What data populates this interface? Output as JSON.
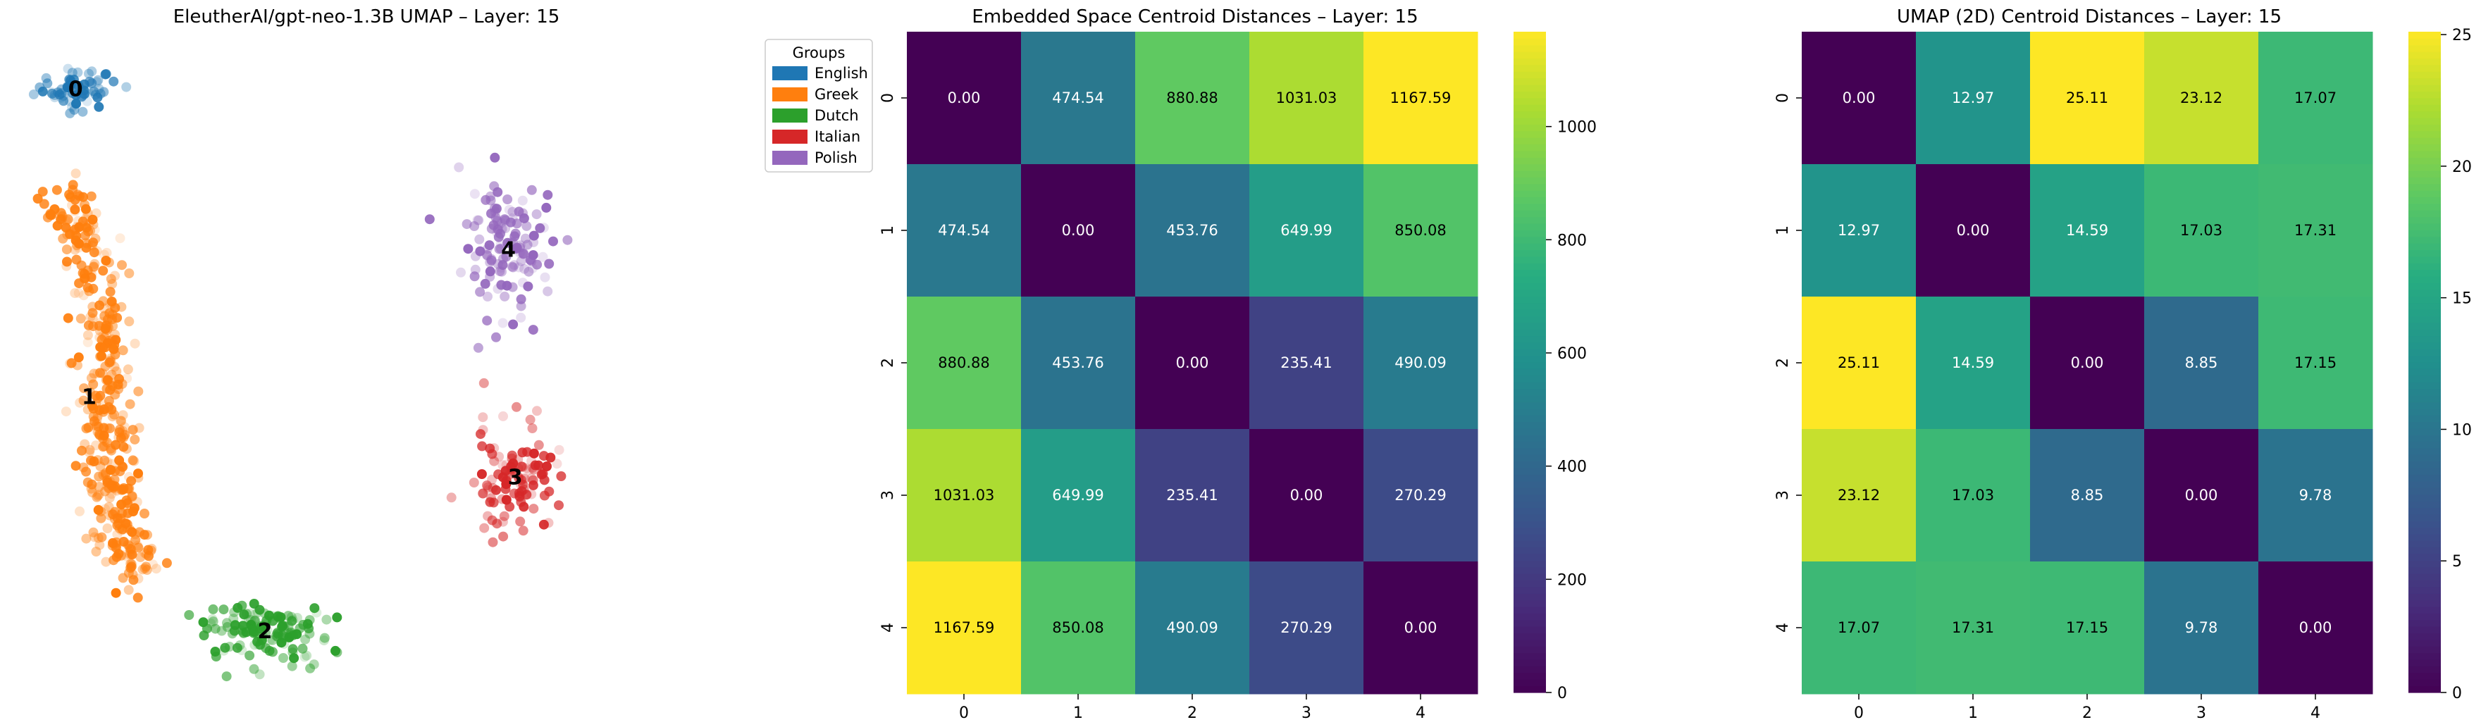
{
  "chart_data": [
    {
      "type": "scatter",
      "title": "EleutherAI/gpt-neo-1.3B UMAP – Layer: 15",
      "legend": {
        "title": "Groups",
        "placement": "top-right",
        "entries": [
          {
            "label": "English",
            "color": "#1f77b4"
          },
          {
            "label": "Greek",
            "color": "#ff7f0e"
          },
          {
            "label": "Dutch",
            "color": "#2ca02c"
          },
          {
            "label": "Italian",
            "color": "#d62728"
          },
          {
            "label": "Polish",
            "color": "#9467bd"
          }
        ]
      },
      "clusters": [
        {
          "label": "0",
          "group": "English",
          "color": "#1f77b4",
          "centroid": [
            0.07,
            0.93
          ],
          "spread": [
            0.03,
            0.015
          ],
          "count": 60
        },
        {
          "label": "1",
          "group": "Greek",
          "color": "#ff7f0e",
          "centroid": [
            0.09,
            0.47
          ],
          "spread": [
            0.05,
            0.2
          ],
          "count": 420
        },
        {
          "label": "2",
          "group": "Dutch",
          "color": "#2ca02c",
          "centroid": [
            0.35,
            0.12
          ],
          "spread": [
            0.05,
            0.02
          ],
          "count": 140
        },
        {
          "label": "3",
          "group": "Italian",
          "color": "#d62728",
          "centroid": [
            0.72,
            0.35
          ],
          "spread": [
            0.03,
            0.04
          ],
          "count": 110
        },
        {
          "label": "4",
          "group": "Polish",
          "color": "#9467bd",
          "centroid": [
            0.71,
            0.69
          ],
          "spread": [
            0.035,
            0.05
          ],
          "count": 130
        }
      ],
      "axes_visible": false
    },
    {
      "type": "heatmap",
      "title": "Embedded Space Centroid Distances – Layer: 15",
      "xticks": [
        "0",
        "1",
        "2",
        "3",
        "4"
      ],
      "yticks": [
        "0",
        "1",
        "2",
        "3",
        "4"
      ],
      "values": [
        [
          0.0,
          474.54,
          880.88,
          1031.03,
          1167.59
        ],
        [
          474.54,
          0.0,
          453.76,
          649.99,
          850.08
        ],
        [
          880.88,
          453.76,
          0.0,
          235.41,
          490.09
        ],
        [
          1031.03,
          649.99,
          235.41,
          0.0,
          270.29
        ],
        [
          1167.59,
          850.08,
          490.09,
          270.29,
          0.0
        ]
      ],
      "value_labels": [
        [
          "0.00",
          "474.54",
          "880.88",
          "1031.03",
          "1167.59"
        ],
        [
          "474.54",
          "0.00",
          "453.76",
          "649.99",
          "850.08"
        ],
        [
          "880.88",
          "453.76",
          "0.00",
          "235.41",
          "490.09"
        ],
        [
          "1031.03",
          "649.99",
          "235.41",
          "0.00",
          "270.29"
        ],
        [
          "1167.59",
          "850.08",
          "490.09",
          "270.29",
          "0.00"
        ]
      ],
      "colormap": "viridis",
      "vmin": 0,
      "vmax": 1167.59,
      "colorbar_ticks": [
        0,
        200,
        400,
        600,
        800,
        1000
      ],
      "colorbar_tick_labels": [
        "0",
        "200",
        "400",
        "600",
        "800",
        "1000"
      ]
    },
    {
      "type": "heatmap",
      "title": "UMAP (2D) Centroid Distances – Layer: 15",
      "xticks": [
        "0",
        "1",
        "2",
        "3",
        "4"
      ],
      "yticks": [
        "0",
        "1",
        "2",
        "3",
        "4"
      ],
      "values": [
        [
          0.0,
          12.97,
          25.11,
          23.12,
          17.07
        ],
        [
          12.97,
          0.0,
          14.59,
          17.03,
          17.31
        ],
        [
          25.11,
          14.59,
          0.0,
          8.85,
          17.15
        ],
        [
          23.12,
          17.03,
          8.85,
          0.0,
          9.78
        ],
        [
          17.07,
          17.31,
          17.15,
          9.78,
          0.0
        ]
      ],
      "value_labels": [
        [
          "0.00",
          "12.97",
          "25.11",
          "23.12",
          "17.07"
        ],
        [
          "12.97",
          "0.00",
          "14.59",
          "17.03",
          "17.31"
        ],
        [
          "25.11",
          "14.59",
          "0.00",
          "8.85",
          "17.15"
        ],
        [
          "23.12",
          "17.03",
          "8.85",
          "0.00",
          "9.78"
        ],
        [
          "17.07",
          "17.31",
          "17.15",
          "9.78",
          "0.00"
        ]
      ],
      "colormap": "viridis",
      "vmin": 0,
      "vmax": 25.11,
      "colorbar_ticks": [
        0,
        5,
        10,
        15,
        20,
        25
      ],
      "colorbar_tick_labels": [
        "0",
        "5",
        "10",
        "15",
        "20",
        "25"
      ]
    }
  ]
}
